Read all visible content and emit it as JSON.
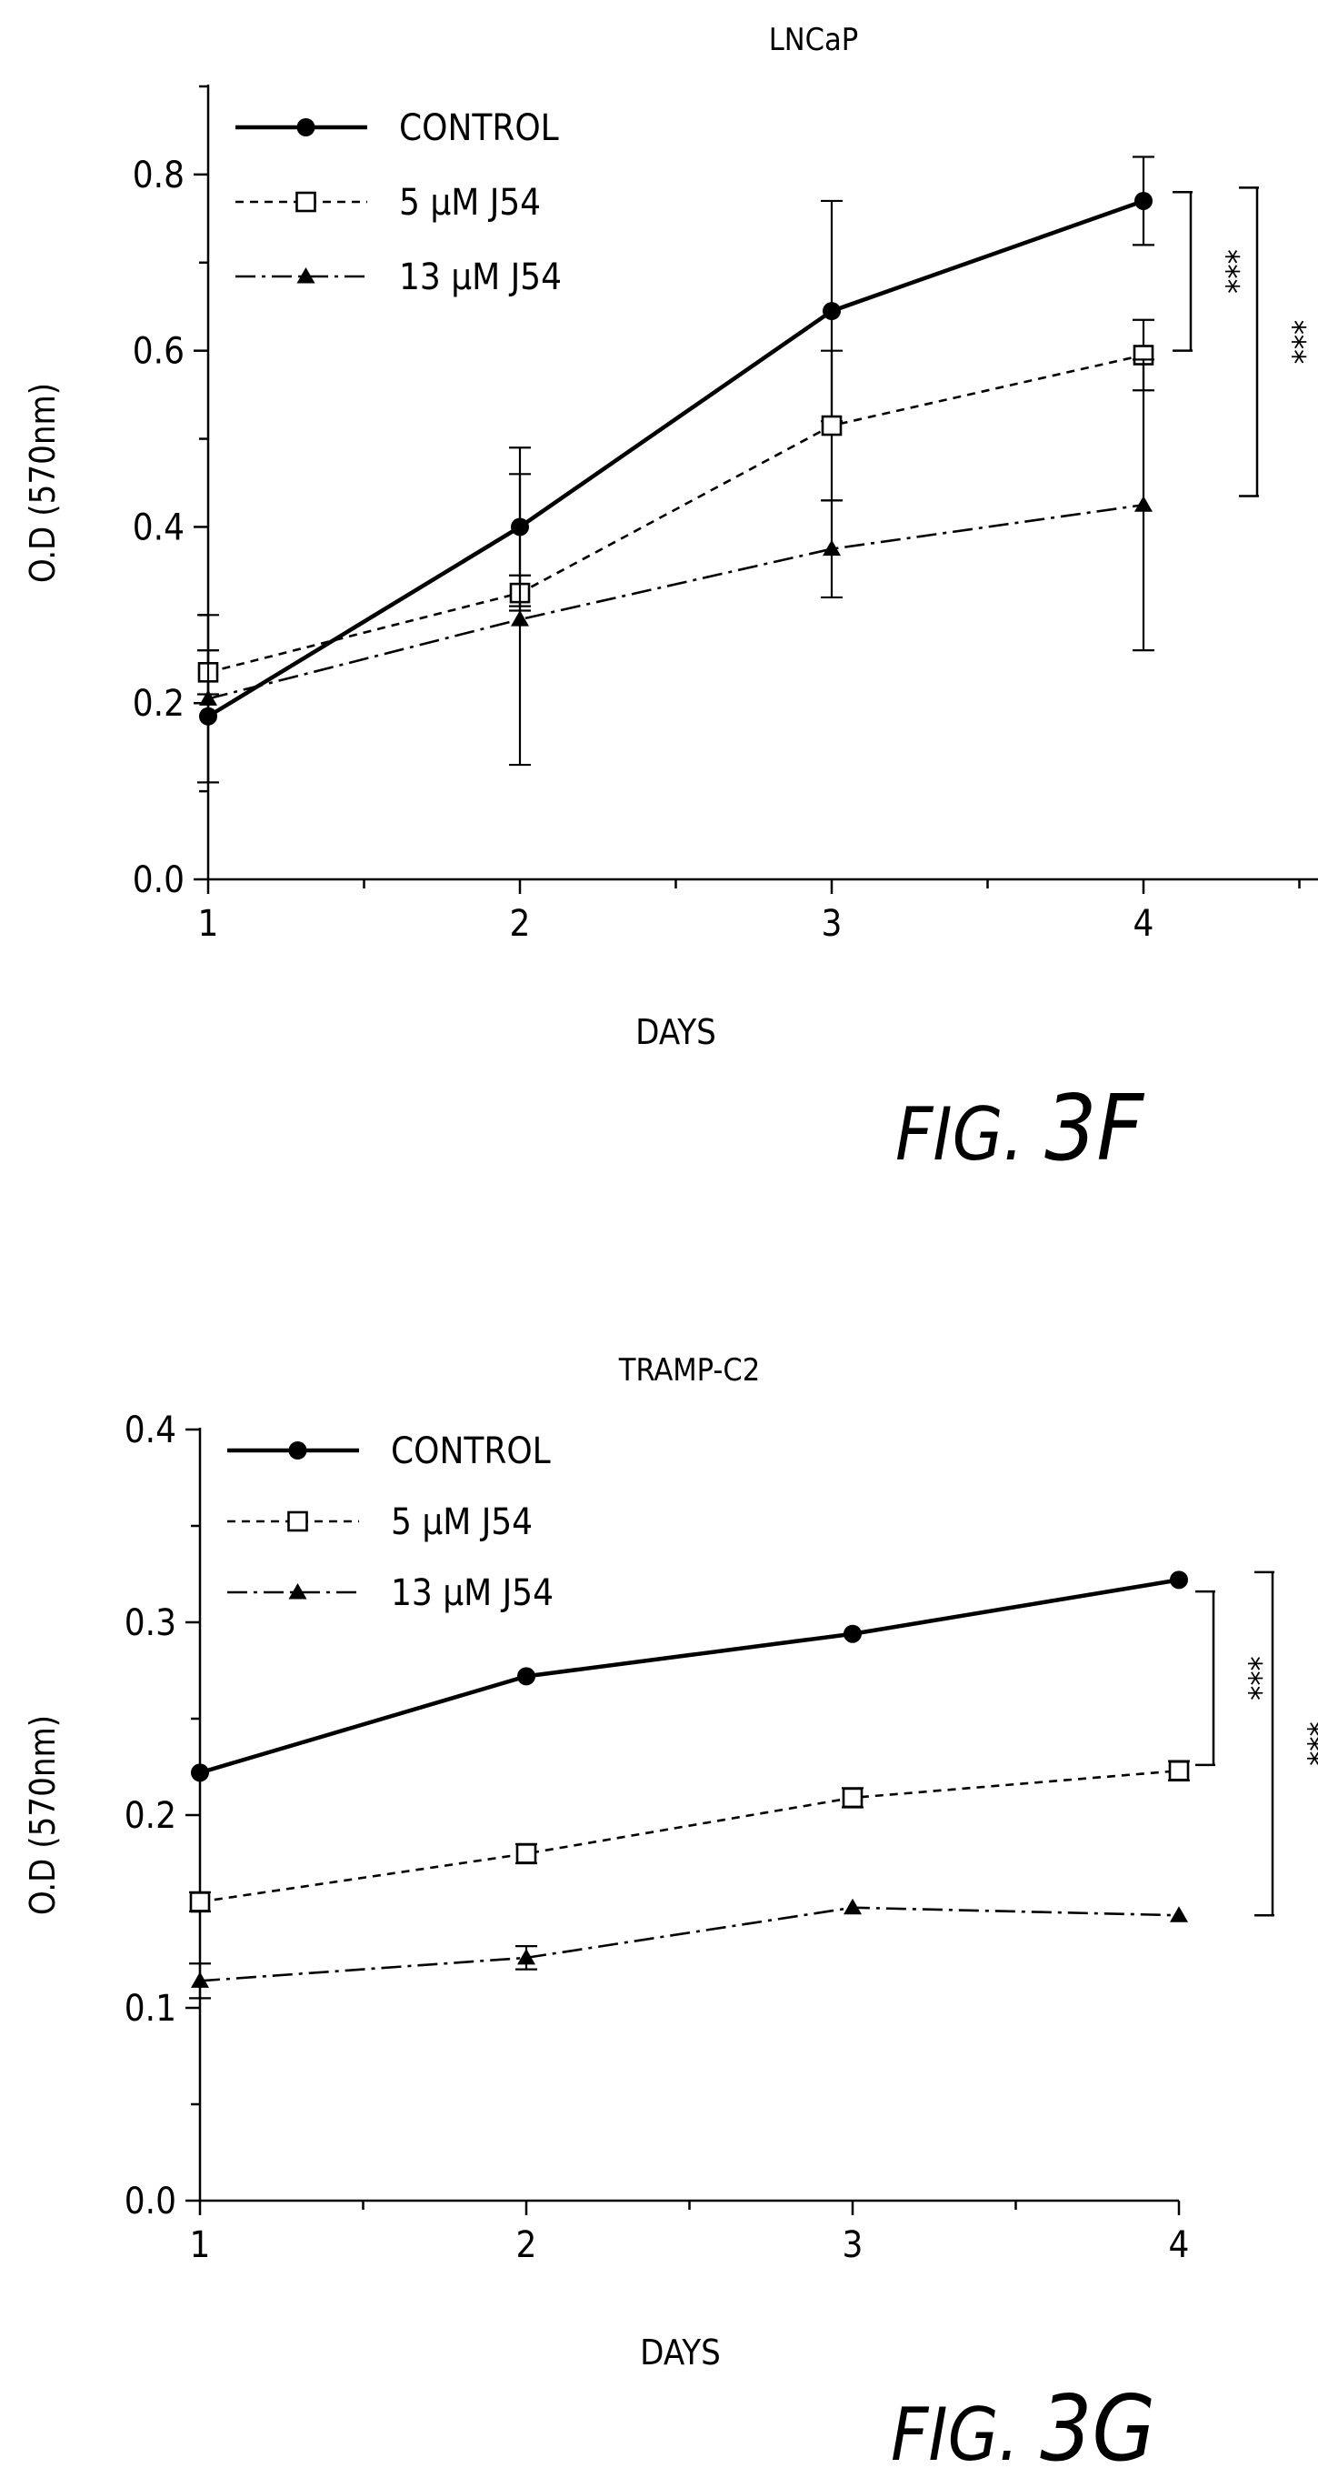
{
  "chart_data": [
    {
      "type": "line",
      "title": "LNCaP",
      "xlabel": "DAYS",
      "ylabel": "O.D (570nm)",
      "x": [
        1,
        2,
        3,
        4
      ],
      "xlim": [
        1,
        5
      ],
      "ylim": [
        0.0,
        0.9
      ],
      "xticks": [
        "1",
        "2",
        "3",
        "4"
      ],
      "yticks": [
        "0.0",
        "0.2",
        "0.4",
        "0.6",
        "0.8"
      ],
      "legend_position": "top-left",
      "series": [
        {
          "name": "CONTROL",
          "marker": "filled-circle",
          "line": "solid",
          "values": [
            0.185,
            0.4,
            0.645,
            0.77
          ],
          "errors": [
            0.075,
            0.09,
            0.125,
            0.05
          ]
        },
        {
          "name": "5 μM J54",
          "marker": "open-square",
          "line": "dashed",
          "values": [
            0.235,
            0.325,
            0.515,
            0.595
          ],
          "errors": [
            0.025,
            0.02,
            0.085,
            0.04
          ]
        },
        {
          "name": "13 μM J54",
          "marker": "filled-triangle",
          "line": "dash-dot",
          "values": [
            0.205,
            0.295,
            0.375,
            0.425
          ],
          "errors": [
            0.095,
            0.165,
            0.055,
            0.165
          ]
        }
      ],
      "significance": [
        {
          "label": "***",
          "y_range": [
            0.6,
            0.78
          ]
        },
        {
          "label": "***",
          "y_range": [
            0.435,
            0.785
          ]
        }
      ],
      "figure_label": {
        "prefix": "FIG.",
        "number": "3F"
      }
    },
    {
      "type": "line",
      "title": "TRAMP-C2",
      "xlabel": "DAYS",
      "ylabel": "O.D (570nm)",
      "x": [
        1,
        2,
        3,
        4
      ],
      "xlim": [
        1,
        4
      ],
      "ylim": [
        0.0,
        0.4
      ],
      "xticks": [
        "1",
        "2",
        "3",
        "4"
      ],
      "yticks": [
        "0.0",
        "0.1",
        "0.2",
        "0.3",
        "0.4"
      ],
      "legend_position": "top-left",
      "series": [
        {
          "name": "CONTROL",
          "marker": "filled-circle",
          "line": "solid",
          "values": [
            0.222,
            0.272,
            0.294,
            0.322
          ],
          "errors": [
            0.0,
            0.0,
            0.0,
            0.0
          ]
        },
        {
          "name": "5 μM J54",
          "marker": "open-square",
          "line": "dashed",
          "values": [
            0.155,
            0.18,
            0.209,
            0.223
          ],
          "errors": [
            0.005,
            0.005,
            0.005,
            0.005
          ]
        },
        {
          "name": "13 μM J54",
          "marker": "filled-triangle",
          "line": "dash-dot",
          "values": [
            0.114,
            0.126,
            0.152,
            0.148
          ],
          "errors": [
            0.009,
            0.006,
            0.0,
            0.0
          ]
        }
      ],
      "significance": [
        {
          "label": "***",
          "y_range": [
            0.226,
            0.316
          ]
        },
        {
          "label": "***",
          "y_range": [
            0.148,
            0.326
          ]
        }
      ],
      "figure_label": {
        "prefix": "FIG.",
        "number": "3G"
      }
    }
  ]
}
